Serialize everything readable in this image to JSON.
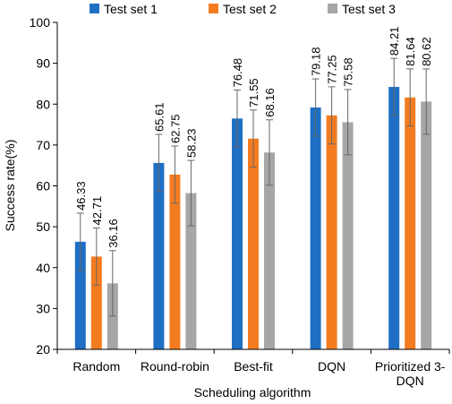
{
  "chart_data": {
    "type": "bar",
    "categories": [
      [
        "Random"
      ],
      [
        "Round-robin"
      ],
      [
        "Best-fit"
      ],
      [
        "DQN"
      ],
      [
        "Prioritized 3-",
        "DQN"
      ]
    ],
    "series": [
      {
        "name": "Test set 1",
        "color": "#1F6FC5",
        "values": [
          46.33,
          65.61,
          76.48,
          79.18,
          84.21
        ],
        "errors": [
          7,
          7,
          7,
          7,
          7
        ]
      },
      {
        "name": "Test set 2",
        "color": "#F47C20",
        "values": [
          42.71,
          62.75,
          71.55,
          77.25,
          81.64
        ],
        "errors": [
          7,
          7,
          7,
          7,
          7
        ]
      },
      {
        "name": "Test set 3",
        "color": "#A6A6A6",
        "values": [
          36.16,
          58.23,
          68.16,
          75.58,
          80.62
        ],
        "errors": [
          8,
          8,
          8,
          8,
          8
        ]
      }
    ],
    "value_labels": [
      [
        "46.33",
        "65.61",
        "76.48",
        "79.18",
        "84.21"
      ],
      [
        "42.71",
        "62.75",
        "71.55",
        "77.25",
        "81.64"
      ],
      [
        "36.16",
        "58.23",
        "68.16",
        "75.58",
        "80.62"
      ]
    ],
    "xlabel": "Scheduling algorithm",
    "ylabel": "Success rate(%)",
    "ylim": [
      20,
      100
    ],
    "yticks": [
      "20",
      "30",
      "40",
      "50",
      "60",
      "70",
      "80",
      "90",
      "100"
    ],
    "legend": "top",
    "grid": false
  }
}
